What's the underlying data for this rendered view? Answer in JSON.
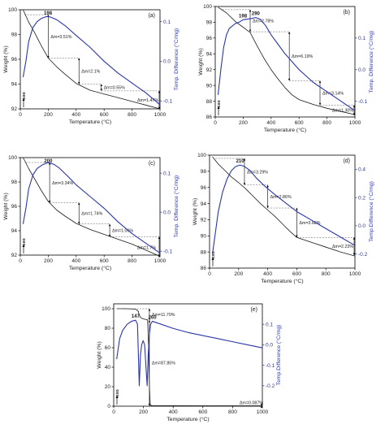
{
  "colors": {
    "weight": "#1a1a1a",
    "dta": "#2b35a8",
    "annot": "#1a1a1a"
  },
  "chart_data": [
    {
      "id": "a",
      "type": "line",
      "panel_label": "(a)",
      "xlabel": "Temperature (°C)",
      "ylabel": "Weight (%)",
      "y2label": "Temp. Difference (°C/mg)",
      "xlim": [
        0,
        1000
      ],
      "ylim": [
        92,
        100
      ],
      "y2lim": [
        -0.12,
        0.13
      ],
      "xticks": [
        "0",
        "200",
        "400",
        "600",
        "800",
        "1000"
      ],
      "yticks": [
        "92",
        "94",
        "96",
        "98",
        "100"
      ],
      "y2ticks": [
        "-0.1",
        "0.0",
        "0.1"
      ],
      "exo_label": "exo",
      "peaks": [
        {
          "x": 198,
          "label": "198"
        }
      ],
      "steps": [
        {
          "label": "Δm=3.51%",
          "x_from": 30,
          "x_to": 200,
          "y_top": 99.6,
          "y_bottom": 96.1
        },
        {
          "label": "Δm=2.1%",
          "x_from": 200,
          "x_to": 420,
          "y_top": 96.1,
          "y_bottom": 94.0
        },
        {
          "label": "Δm=0.55%",
          "x_from": 420,
          "x_to": 580,
          "y_top": 94.0,
          "y_bottom": 93.45
        },
        {
          "label": "Δm=1.47%",
          "x_from": 580,
          "x_to": 1000,
          "y_top": 93.45,
          "y_bottom": 91.98
        }
      ],
      "series": [
        {
          "name": "TG",
          "axis": "left",
          "x": [
            20,
            60,
            100,
            150,
            200,
            260,
            320,
            400,
            500,
            600,
            700,
            800,
            900,
            1000
          ],
          "y": [
            100,
            99.0,
            98.2,
            97.1,
            96.1,
            95.4,
            94.8,
            94.05,
            93.5,
            93.2,
            92.9,
            92.6,
            92.3,
            92.0
          ]
        },
        {
          "name": "DTA",
          "axis": "right",
          "x": [
            20,
            40,
            60,
            90,
            120,
            150,
            180,
            198,
            220,
            260,
            320,
            400,
            500,
            600,
            700,
            800,
            900,
            1000
          ],
          "y": [
            -0.04,
            0.0,
            0.05,
            0.085,
            0.1,
            0.108,
            0.112,
            0.113,
            0.111,
            0.105,
            0.09,
            0.065,
            0.035,
            0.0,
            -0.03,
            -0.055,
            -0.08,
            -0.11
          ]
        }
      ]
    },
    {
      "id": "b",
      "type": "line",
      "panel_label": "(b)",
      "xlabel": "Temperature (°C)",
      "ylabel": "Weight (%)",
      "y2label": "Temp. Difference (°C/mg)",
      "xlim": [
        0,
        1000
      ],
      "ylim": [
        86,
        100
      ],
      "y2lim": [
        -0.15,
        0.2
      ],
      "xticks": [
        "0",
        "200",
        "400",
        "600",
        "800",
        "1000"
      ],
      "yticks": [
        "86",
        "88",
        "90",
        "92",
        "94",
        "96",
        "98",
        "100"
      ],
      "y2ticks": [
        "-0.1",
        "0.0",
        "0.1"
      ],
      "exo_label": "exo",
      "peaks": [
        {
          "x": 198,
          "label": "198"
        },
        {
          "x": 290,
          "label": "290"
        }
      ],
      "steps": [
        {
          "label": "Δm=2.78%",
          "x_from": 50,
          "x_to": 250,
          "y_top": 99.6,
          "y_bottom": 96.8
        },
        {
          "label": "Δm=6.19%",
          "x_from": 250,
          "x_to": 530,
          "y_top": 96.8,
          "y_bottom": 90.6
        },
        {
          "label": "Δm=3.14%",
          "x_from": 530,
          "x_to": 750,
          "y_top": 90.6,
          "y_bottom": 87.5
        },
        {
          "label": "Δm=1.30%",
          "x_from": 750,
          "x_to": 1000,
          "y_top": 87.5,
          "y_bottom": 86.2
        }
      ],
      "series": [
        {
          "name": "TG",
          "axis": "left",
          "x": [
            20,
            80,
            150,
            198,
            250,
            300,
            350,
            400,
            450,
            500,
            550,
            600,
            700,
            800,
            900,
            1000
          ],
          "y": [
            99.9,
            99.2,
            98.0,
            97.4,
            96.7,
            95.0,
            93.4,
            92.0,
            90.8,
            89.7,
            88.8,
            88.2,
            87.6,
            87.1,
            86.7,
            86.3
          ]
        },
        {
          "name": "DTA",
          "axis": "right",
          "x": [
            20,
            40,
            60,
            80,
            100,
            140,
            170,
            198,
            230,
            260,
            290,
            320,
            360,
            400,
            450,
            500,
            600,
            700,
            800,
            900,
            1000
          ],
          "y": [
            -0.08,
            0.0,
            0.07,
            0.11,
            0.13,
            0.145,
            0.15,
            0.158,
            0.16,
            0.162,
            0.165,
            0.16,
            0.14,
            0.11,
            0.08,
            0.05,
            0.0,
            -0.04,
            -0.07,
            -0.1,
            -0.13
          ]
        }
      ]
    },
    {
      "id": "c",
      "type": "line",
      "panel_label": "(c)",
      "xlabel": "Temperature (°C)",
      "ylabel": "Weight (%)",
      "y2label": "Temp. Difference (°C/mg)",
      "xlim": [
        0,
        1000
      ],
      "ylim": [
        92,
        100
      ],
      "y2lim": [
        -0.11,
        0.14
      ],
      "xticks": [
        "0",
        "200",
        "400",
        "600",
        "800",
        "1000"
      ],
      "yticks": [
        "92",
        "94",
        "96",
        "98",
        "100"
      ],
      "y2ticks": [
        "-0.1",
        "0.0",
        "0.1"
      ],
      "exo_label": "exo",
      "peaks": [
        {
          "x": 200,
          "label": "200"
        }
      ],
      "steps": [
        {
          "label": "Δm=3.34%",
          "x_from": 40,
          "x_to": 210,
          "y_top": 99.6,
          "y_bottom": 96.3
        },
        {
          "label": "Δm=1.74%",
          "x_from": 210,
          "x_to": 420,
          "y_top": 96.3,
          "y_bottom": 94.55
        },
        {
          "label": "Δm=1.06%",
          "x_from": 420,
          "x_to": 640,
          "y_top": 94.55,
          "y_bottom": 93.5
        },
        {
          "label": "Δm=1.7%",
          "x_from": 640,
          "x_to": 1000,
          "y_top": 93.5,
          "y_bottom": 91.8
        }
      ],
      "series": [
        {
          "name": "TG",
          "axis": "left",
          "x": [
            20,
            60,
            100,
            150,
            200,
            260,
            320,
            400,
            500,
            600,
            700,
            800,
            900,
            1000
          ],
          "y": [
            100,
            99.1,
            98.3,
            97.3,
            96.4,
            95.7,
            95.2,
            94.6,
            94.1,
            93.7,
            93.3,
            92.9,
            92.4,
            91.9
          ]
        },
        {
          "name": "DTA",
          "axis": "right",
          "x": [
            20,
            40,
            60,
            90,
            120,
            160,
            200,
            240,
            280,
            340,
            400,
            500,
            600,
            700,
            800,
            900,
            1000
          ],
          "y": [
            -0.03,
            0.01,
            0.06,
            0.095,
            0.112,
            0.122,
            0.127,
            0.123,
            0.113,
            0.092,
            0.07,
            0.04,
            0.01,
            -0.025,
            -0.055,
            -0.08,
            -0.105
          ]
        }
      ]
    },
    {
      "id": "d",
      "type": "line",
      "panel_label": "(d)",
      "xlabel": "Temperature (°C)",
      "ylabel": "Weight (%)",
      "y2label": "Temp.Difference (°C/mg)",
      "xlim": [
        0,
        1000
      ],
      "ylim": [
        86,
        100
      ],
      "y2lim": [
        -0.3,
        0.5
      ],
      "xticks": [
        "0",
        "200",
        "400",
        "600",
        "800",
        "1000"
      ],
      "yticks": [
        "86",
        "88",
        "90",
        "92",
        "94",
        "96",
        "98",
        "100"
      ],
      "y2ticks": [
        "-0.2",
        "0.0",
        "0.2",
        "0.4"
      ],
      "exo_label": "exo",
      "peaks": [
        {
          "x": 210,
          "label": "210"
        }
      ],
      "steps": [
        {
          "label": "Δm=3.29%",
          "x_from": 40,
          "x_to": 240,
          "y_top": 99.6,
          "y_bottom": 96.3
        },
        {
          "label": "Δm=2.86%",
          "x_from": 240,
          "x_to": 400,
          "y_top": 96.3,
          "y_bottom": 93.45
        },
        {
          "label": "Δm=3.68%",
          "x_from": 400,
          "x_to": 600,
          "y_top": 93.45,
          "y_bottom": 89.8
        },
        {
          "label": "Δm=2.23%",
          "x_from": 600,
          "x_to": 1000,
          "y_top": 89.8,
          "y_bottom": 87.6
        }
      ],
      "series": [
        {
          "name": "TG",
          "axis": "left",
          "x": [
            20,
            60,
            100,
            150,
            200,
            250,
            300,
            350,
            400,
            450,
            500,
            550,
            600,
            700,
            800,
            900,
            1000
          ],
          "y": [
            99.8,
            98.9,
            98.2,
            97.3,
            96.6,
            95.8,
            94.9,
            94.0,
            93.2,
            92.4,
            91.5,
            90.6,
            89.8,
            89.2,
            88.6,
            88.0,
            87.5
          ]
        },
        {
          "name": "DTA",
          "axis": "right",
          "x": [
            20,
            40,
            60,
            90,
            120,
            150,
            180,
            210,
            240,
            280,
            320,
            380,
            450,
            500,
            550,
            600,
            700,
            800,
            900,
            1000
          ],
          "y": [
            -0.2,
            -0.05,
            0.1,
            0.24,
            0.33,
            0.39,
            0.42,
            0.43,
            0.42,
            0.39,
            0.34,
            0.28,
            0.22,
            0.18,
            0.14,
            0.1,
            0.04,
            -0.02,
            -0.08,
            -0.14
          ]
        }
      ]
    },
    {
      "id": "e",
      "type": "line",
      "panel_label": "(e)",
      "xlabel": "Temperature (°C)",
      "ylabel": "Weight (%)",
      "y2label": "Temp.Difference (°C/mg)",
      "xlim": [
        0,
        1000
      ],
      "ylim": [
        0,
        105
      ],
      "y2lim": [
        -0.3,
        0.2
      ],
      "xticks": [
        "0",
        "200",
        "400",
        "600",
        "800",
        "1000"
      ],
      "yticks": [
        "0",
        "20",
        "40",
        "60",
        "80",
        "100"
      ],
      "y2ticks": [
        "-0.2",
        "-0.1",
        "0.0",
        "0.1"
      ],
      "exo_label": "exo",
      "peaks": [
        {
          "x": 147,
          "label": "147"
        },
        {
          "x": 260,
          "label": "260"
        }
      ],
      "steps": [
        {
          "label": "Δm=11.70%",
          "x_from": 60,
          "x_to": 240,
          "y_top": 100,
          "y_bottom": 88.3
        },
        {
          "label": "Δm=87.85%",
          "x_from": 240,
          "x_to": 240,
          "y_top": 88.3,
          "y_bottom": 0.5
        },
        {
          "label": "Δm=0.087%",
          "x_from": 240,
          "x_to": 1000,
          "y_top": 0.5,
          "y_bottom": 0.4
        }
      ],
      "series": [
        {
          "name": "TG",
          "axis": "left",
          "x": [
            20,
            80,
            120,
            150,
            165,
            172,
            180,
            195,
            215,
            228,
            235,
            240,
            246,
            260,
            400,
            600,
            800,
            1000
          ],
          "y": [
            100,
            100,
            99.8,
            99.3,
            97.5,
            93.5,
            91.0,
            89.8,
            89.0,
            88.5,
            60,
            20,
            1.0,
            0.5,
            0.45,
            0.43,
            0.42,
            0.41
          ]
        },
        {
          "name": "DTA",
          "axis": "right",
          "x": [
            20,
            40,
            60,
            90,
            120,
            147,
            160,
            172,
            180,
            188,
            198,
            208,
            218,
            225,
            232,
            240,
            248,
            260,
            300,
            400,
            500,
            600,
            700,
            800,
            900,
            1000
          ],
          "y": [
            -0.07,
            0.03,
            0.07,
            0.1,
            0.115,
            0.12,
            0.1,
            -0.2,
            -0.05,
            0.0,
            0.02,
            0.0,
            -0.12,
            -0.2,
            -0.05,
            0.05,
            0.1,
            0.115,
            0.105,
            0.08,
            0.06,
            0.045,
            0.03,
            0.015,
            0.0,
            -0.015
          ]
        }
      ]
    }
  ]
}
